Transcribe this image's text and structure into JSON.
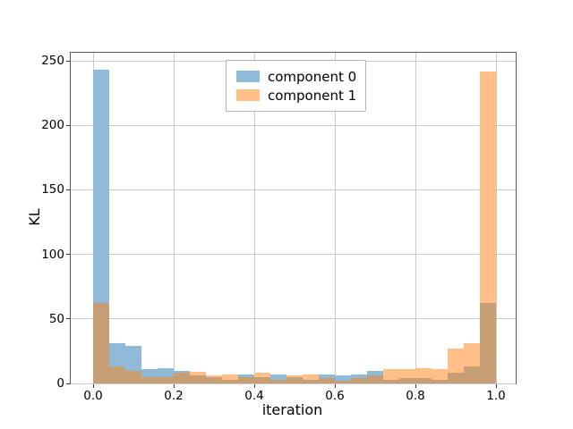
{
  "figure": {
    "background": "#ffffff"
  },
  "chart_data": {
    "type": "histogram",
    "title": "",
    "xlabel": "iteration",
    "ylabel": "KL",
    "xlim": [
      -0.056,
      1.049
    ],
    "ylim": [
      0,
      256
    ],
    "grid": true,
    "grid_color": "#c9c9c9",
    "spine_color": "#5a5a5a",
    "xticks": {
      "values": [
        0.0,
        0.2,
        0.4,
        0.6,
        0.8,
        1.0
      ],
      "labels": [
        "0.0",
        "0.2",
        "0.4",
        "0.6",
        "0.8",
        "1.0"
      ]
    },
    "yticks": {
      "values": [
        0,
        50,
        100,
        150,
        200,
        250
      ],
      "labels": [
        "0",
        "50",
        "100",
        "150",
        "200",
        "250"
      ]
    },
    "bin_width": 0.04,
    "bin_edges": [
      0.0,
      0.04,
      0.08,
      0.12,
      0.16,
      0.2,
      0.24,
      0.28,
      0.32,
      0.36,
      0.4,
      0.44,
      0.48,
      0.52,
      0.56,
      0.6,
      0.64,
      0.68,
      0.72,
      0.76,
      0.8,
      0.84,
      0.88,
      0.92,
      0.96
    ],
    "series": [
      {
        "name": "component 0",
        "color": "#8FBBD9",
        "values": [
          243,
          31,
          29,
          11,
          12,
          10,
          6,
          5,
          3,
          7,
          5,
          7,
          5,
          3,
          7,
          6,
          7,
          10,
          3,
          4,
          4,
          3,
          8,
          13,
          62
        ]
      },
      {
        "name": "component 1",
        "color": "#FFBF86",
        "values": [
          62,
          13,
          10,
          5,
          5,
          8,
          9,
          6,
          7,
          5,
          8,
          3,
          6,
          7,
          4,
          2,
          4,
          6,
          11,
          11,
          12,
          11,
          27,
          31,
          242
        ]
      }
    ],
    "overlap_color": "#C79D73",
    "legend": {
      "position": "upper center",
      "entries": [
        "component 0",
        "component 1"
      ]
    }
  }
}
